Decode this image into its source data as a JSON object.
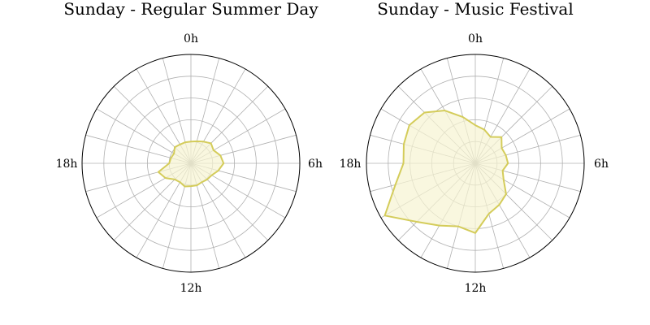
{
  "chart_data": [
    {
      "type": "radar",
      "title": "Sunday - Regular Summer Day",
      "theta_labels": [
        "0h",
        "6h",
        "12h",
        "18h"
      ],
      "theta_direction": "clockwise",
      "theta_zero": "top",
      "rlim": [
        0,
        5
      ],
      "rgrid": [
        1,
        2,
        3,
        4,
        5
      ],
      "angular_spokes": 24,
      "grid": true,
      "series_color": "#d4cc5a",
      "fill_color": "#f6f3d2",
      "x": [
        0,
        1,
        2,
        3,
        4,
        5,
        6,
        7,
        8,
        9,
        10,
        11,
        12,
        13,
        14,
        15,
        16,
        17,
        18,
        19,
        20,
        21,
        22,
        23
      ],
      "values": [
        1.0,
        1.05,
        1.15,
        1.3,
        1.2,
        1.4,
        1.5,
        1.3,
        1.1,
        1.05,
        1.0,
        1.05,
        1.05,
        1.1,
        1.0,
        1.05,
        1.35,
        1.55,
        1.0,
        0.95,
        0.9,
        1.05,
        1.0,
        1.0
      ]
    },
    {
      "type": "radar",
      "title": "Sunday - Music Festival",
      "theta_labels": [
        "0h",
        "6h",
        "12h",
        "18h"
      ],
      "theta_direction": "clockwise",
      "theta_zero": "top",
      "rlim": [
        0,
        5
      ],
      "rgrid": [
        1,
        2,
        3,
        4,
        5
      ],
      "angular_spokes": 24,
      "grid": true,
      "series_color": "#d4cc5a",
      "fill_color": "#f6f3d2",
      "x": [
        0,
        1,
        2,
        3,
        4,
        5,
        6,
        7,
        8,
        9,
        10,
        11,
        12,
        13,
        14,
        15,
        16,
        17,
        18,
        19,
        20,
        21,
        22,
        23
      ],
      "values": [
        1.75,
        1.6,
        1.4,
        1.7,
        1.4,
        1.45,
        1.5,
        1.3,
        1.5,
        2.0,
        2.2,
        2.4,
        3.2,
        3.0,
        3.3,
        3.8,
        4.8,
        3.8,
        3.3,
        3.4,
        3.5,
        3.3,
        2.8,
        2.2
      ]
    }
  ]
}
